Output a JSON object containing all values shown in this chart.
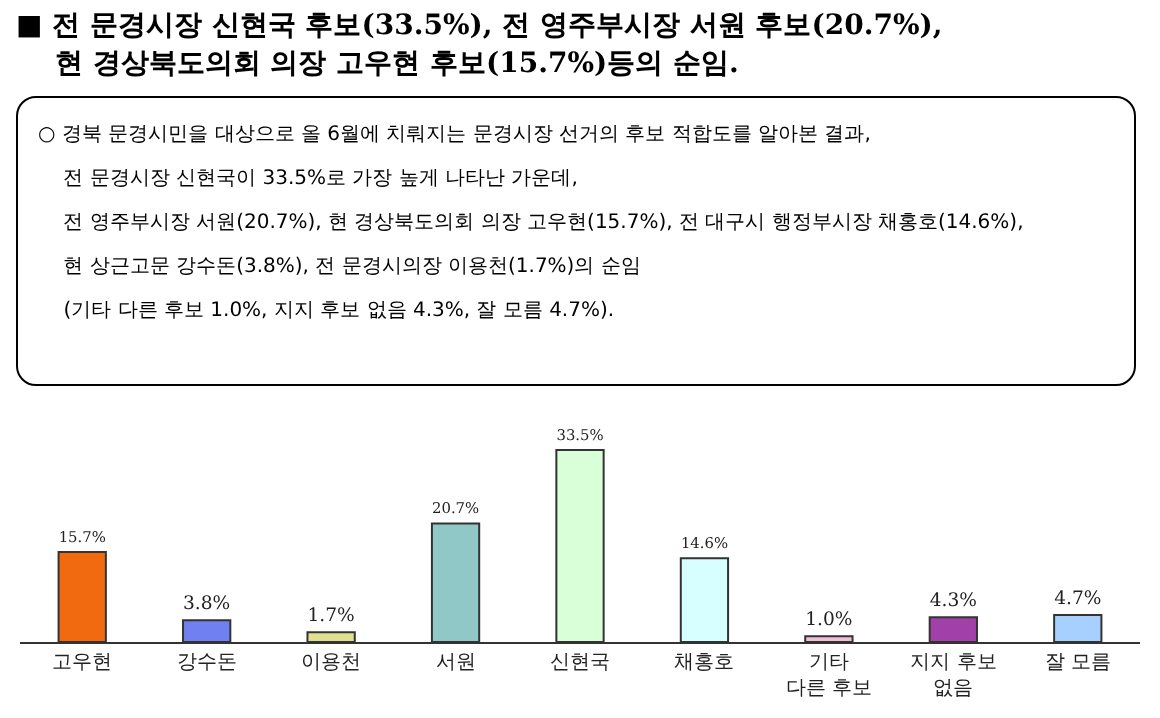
{
  "chart_data": {
    "type": "bar",
    "title": "■ 전 문경시장 신현국 후보(33.5%), 전 영주부시장 서원 후보(20.7%),\n현 경상북도의회 의장 고우현 후보(15.7%)등의 순임.",
    "annotations": [
      "○ 경북 문경시민을 대상으로 올 6월에 치뤄지는 문경시장 선거의 후보 적합도를 알아본 결과,",
      "전 문경시장 신현국이 33.5%로 가장 높게 나타난 가운데,",
      "전 영주부시장 서원(20.7%), 현 경상북도의회 의장 고우현(15.7%), 전 대구시 행정부시장 채홍호(14.6%),",
      "현 상근고문 강수돈(3.8%), 전 문경시의장 이용천(1.7%)의 순임",
      "(기타 다른 후보 1.0%, 지지 후보 없음 4.3%, 잘 모름 4.7%)."
    ],
    "categories": [
      "고우현",
      "강수돈",
      "이용천",
      "서원",
      "신현국",
      "채홍호",
      "기타\n다른 후보",
      "지지 후보\n없음",
      "잘 모름"
    ],
    "values": [
      15.7,
      3.8,
      1.7,
      20.7,
      33.5,
      14.6,
      1.0,
      4.3,
      4.7
    ],
    "value_labels": [
      "15.7%",
      "3.8%",
      "1.7%",
      "20.7%",
      "33.5%",
      "14.6%",
      "1.0%",
      "4.3%",
      "4.7%"
    ],
    "colors": [
      "#f26a10",
      "#7080f0",
      "#e0e090",
      "#90c8c8",
      "#d8ffd8",
      "#d8ffff",
      "#f0c0d8",
      "#a040a8",
      "#a8d0ff"
    ],
    "tick_labels": "x",
    "legend": false
  }
}
